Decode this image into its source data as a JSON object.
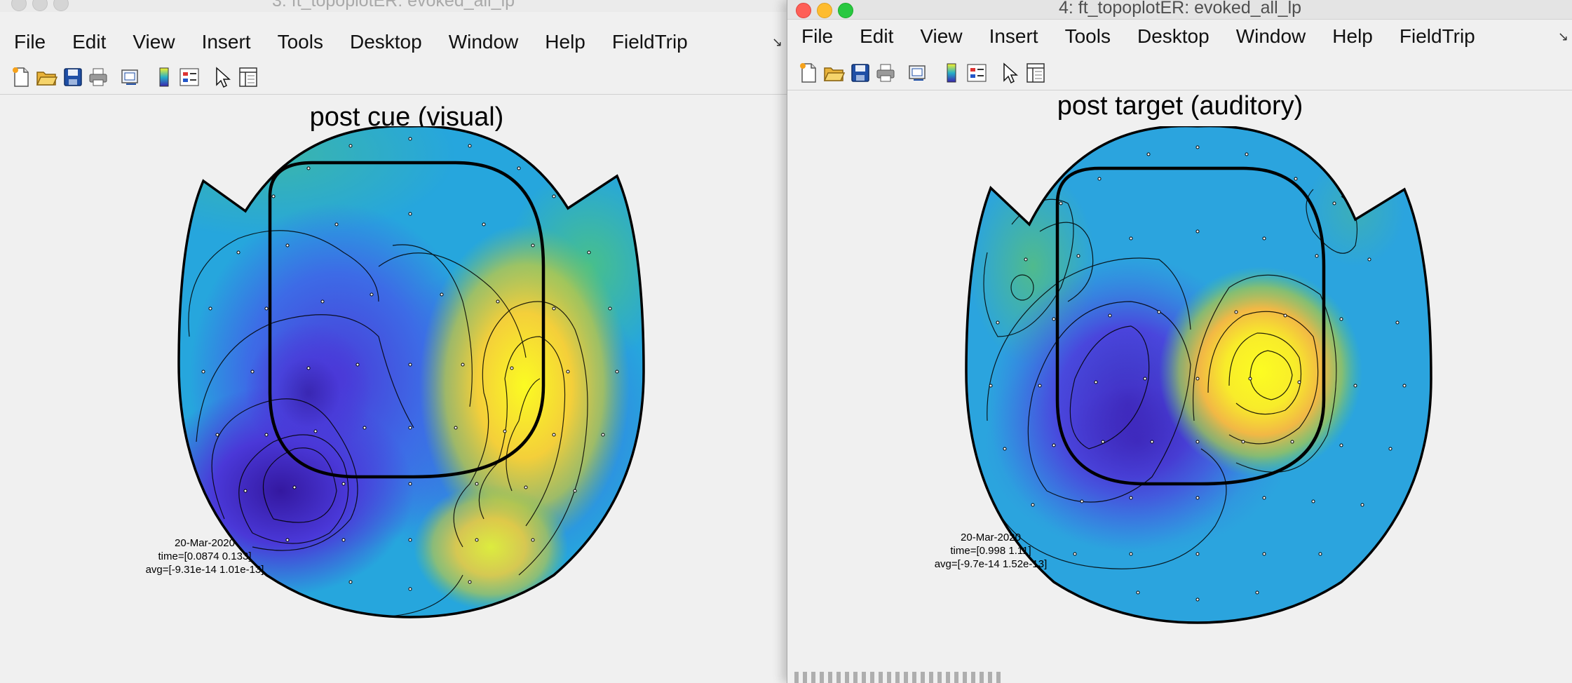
{
  "windows": [
    {
      "title": "3: ft_topoplotER: evoked_all_lp",
      "menu": [
        "File",
        "Edit",
        "View",
        "Insert",
        "Tools",
        "Desktop",
        "Window",
        "Help",
        "FieldTrip"
      ],
      "plot_title": "post cue (visual)",
      "info": {
        "date": "20-Mar-2020",
        "time": "time=[0.0874 0.133]",
        "avg": "avg=[-9.31e-14 1.01e-13]"
      }
    },
    {
      "title": "4: ft_topoplotER: evoked_all_lp",
      "menu": [
        "File",
        "Edit",
        "View",
        "Insert",
        "Tools",
        "Desktop",
        "Window",
        "Help",
        "FieldTrip"
      ],
      "plot_title": "post target (auditory)",
      "info": {
        "date": "20-Mar-2020",
        "time": "time=[0.998 1.11]",
        "avg": "avg=[-9.7e-14 1.52e-13]"
      }
    }
  ],
  "toolbar_icons": [
    "new-figure-icon",
    "open-file-icon",
    "save-icon",
    "print-icon",
    "link-plot-icon",
    "colorbar-icon",
    "legend-icon",
    "pointer-icon",
    "property-inspector-icon"
  ],
  "colors": {
    "blob_low": "#3a25b0",
    "blob_mid": "#2aa8e0",
    "blob_green": "#5fc370",
    "blob_high": "#f7f32a",
    "background": "#f0f0f0"
  }
}
